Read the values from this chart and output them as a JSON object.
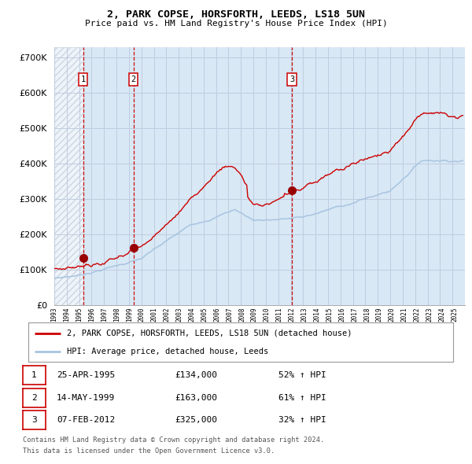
{
  "title1": "2, PARK COPSE, HORSFORTH, LEEDS, LS18 5UN",
  "title2": "Price paid vs. HM Land Registry's House Price Index (HPI)",
  "ytick_vals": [
    0,
    100000,
    200000,
    300000,
    400000,
    500000,
    600000,
    700000
  ],
  "ylim": [
    0,
    730000
  ],
  "x_start_year": 1993.0,
  "x_end_year": 2025.83,
  "sales": [
    {
      "label": "1",
      "date_dec": 1995.32,
      "price": 134000
    },
    {
      "label": "2",
      "date_dec": 1999.37,
      "price": 163000
    },
    {
      "label": "3",
      "date_dec": 2012.1,
      "price": 325000
    }
  ],
  "legend_line1": "2, PARK COPSE, HORSFORTH, LEEDS, LS18 5UN (detached house)",
  "legend_line2": "HPI: Average price, detached house, Leeds",
  "table": [
    {
      "num": "1",
      "date": "25-APR-1995",
      "price": "£134,000",
      "hpi": "52% ↑ HPI"
    },
    {
      "num": "2",
      "date": "14-MAY-1999",
      "price": "£163,000",
      "hpi": "61% ↑ HPI"
    },
    {
      "num": "3",
      "date": "07-FEB-2012",
      "price": "£325,000",
      "hpi": "32% ↑ HPI"
    }
  ],
  "footer1": "Contains HM Land Registry data © Crown copyright and database right 2024.",
  "footer2": "This data is licensed under the Open Government Licence v3.0.",
  "hpi_color": "#a8c4e0",
  "price_color": "#cc0000",
  "sale_dot_color": "#990000",
  "dashed_line_color": "#cc0000",
  "grid_color": "#c0cce0",
  "plot_bg": "#d8e8f5"
}
